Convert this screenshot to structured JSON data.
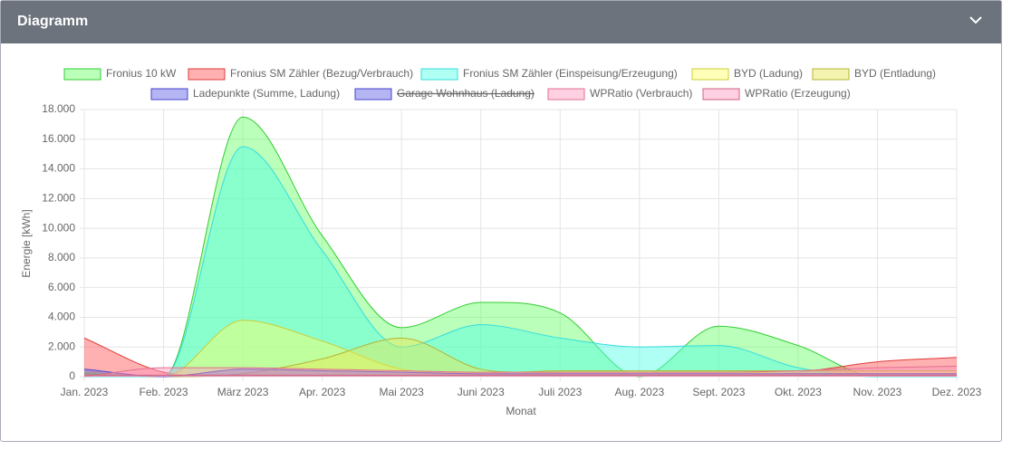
{
  "header": {
    "title": "Diagramm"
  },
  "chart_data": {
    "type": "area",
    "x_label": "Monat",
    "y_label": "Energie [kWh]",
    "categories": [
      "Jan. 2023",
      "Feb. 2023",
      "März 2023",
      "Apr. 2023",
      "Mai 2023",
      "Juni 2023",
      "Juli 2023",
      "Aug. 2023",
      "Sept. 2023",
      "Okt. 2023",
      "Nov. 2023",
      "Dez. 2023"
    ],
    "ylim": [
      0,
      18000
    ],
    "yticks": [
      0,
      {
        "value": 2000,
        "label": "2.000"
      },
      {
        "value": 4000,
        "label": "4.000"
      },
      {
        "value": 6000,
        "label": "6.000"
      },
      {
        "value": 8000,
        "label": "8.000"
      },
      {
        "value": 10000,
        "label": "10.000"
      },
      {
        "value": 12000,
        "label": "12.000"
      },
      {
        "value": 14000,
        "label": "14.000"
      },
      {
        "value": 16000,
        "label": "16.000"
      },
      {
        "value": 18000,
        "label": "18.000"
      }
    ],
    "grid": true,
    "series": [
      {
        "name": "Fronius 10 kW",
        "color": "#33cc33",
        "fill": "rgba(102,255,102,0.45)",
        "values": [
          100,
          0,
          17500,
          9500,
          3300,
          5000,
          4300,
          0,
          3400,
          2100,
          0,
          0
        ]
      },
      {
        "name": "Fronius SM Zähler (Bezug/Verbrauch)",
        "color": "#e03c3c",
        "fill": "rgba(255,80,80,0.45)",
        "values": [
          2600,
          300,
          100,
          100,
          100,
          100,
          100,
          100,
          100,
          300,
          1000,
          1300
        ]
      },
      {
        "name": "Fronius SM Zähler (Einspeisung/Erzeugung)",
        "color": "#33dddd",
        "fill": "rgba(80,255,230,0.45)",
        "values": [
          0,
          0,
          15500,
          8500,
          2000,
          3500,
          2600,
          2000,
          2100,
          600,
          0,
          0
        ]
      },
      {
        "name": "BYD (Ladung)",
        "color": "#cccc33",
        "fill": "rgba(255,255,100,0.45)",
        "values": [
          300,
          0,
          3800,
          2400,
          500,
          300,
          300,
          300,
          300,
          200,
          100,
          100
        ]
      },
      {
        "name": "BYD (Entladung)",
        "color": "#b5b533",
        "fill": "rgba(230,230,80,0.45)",
        "values": [
          200,
          0,
          200,
          1200,
          2600,
          500,
          400,
          400,
          400,
          400,
          400,
          400
        ]
      },
      {
        "name": "Ladepunkte (Summe, Ladung)",
        "color": "#4444cc",
        "fill": "rgba(90,90,230,0.45)",
        "values": [
          500,
          0,
          500,
          400,
          300,
          200,
          200,
          200,
          200,
          200,
          200,
          200
        ]
      },
      {
        "name": "Garage Wohnhaus (Ladung)",
        "color": "#4444cc",
        "fill": "rgba(90,90,230,0.45)",
        "hidden": true
      },
      {
        "name": "WPRatio (Verbrauch)",
        "color": "#e07090",
        "fill": "rgba(255,150,190,0.45)",
        "values": [
          0,
          600,
          600,
          500,
          400,
          300,
          300,
          300,
          300,
          400,
          600,
          700
        ]
      },
      {
        "name": "WPRatio (Erzeugung)",
        "color": "#d06080",
        "fill": "rgba(255,150,190,0.45)",
        "values": [
          100,
          100,
          100,
          100,
          100,
          100,
          100,
          100,
          100,
          100,
          100,
          100
        ]
      }
    ]
  }
}
